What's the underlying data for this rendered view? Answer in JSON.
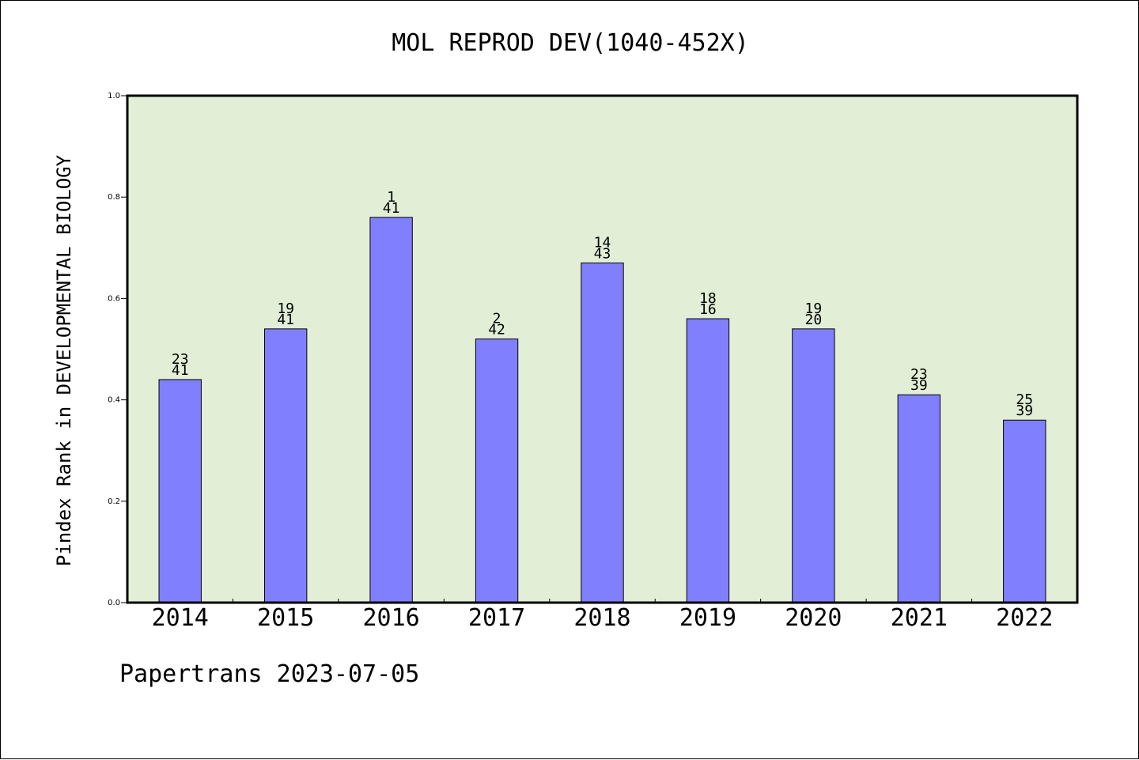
{
  "chart_data": {
    "type": "bar",
    "title": "MOL REPROD DEV(1040-452X)",
    "ylabel": "Pindex Rank in DEVELOPMENTAL BIOLOGY",
    "xlabel": "",
    "categories": [
      "2014",
      "2015",
      "2016",
      "2017",
      "2018",
      "2019",
      "2020",
      "2021",
      "2022"
    ],
    "values": [
      0.44,
      0.54,
      0.76,
      0.52,
      0.67,
      0.56,
      0.54,
      0.41,
      0.36
    ],
    "rank_labels": [
      "23",
      "19",
      "1",
      "2",
      "14",
      "18",
      "19",
      "23",
      "25"
    ],
    "total_labels": [
      "41",
      "41",
      "41",
      "42",
      "43",
      "16",
      "20",
      "39",
      "39"
    ],
    "ylim": [
      0,
      1.0
    ],
    "yticks": [
      "0.0",
      "0.2",
      "0.4",
      "0.6",
      "0.8",
      "1.0"
    ],
    "grid": false,
    "colors": {
      "bar": "#8080ff",
      "plot_background": "#e2efd6",
      "axis": "#000000"
    }
  },
  "footer": {
    "credit": "Papertrans 2023-07-05"
  }
}
